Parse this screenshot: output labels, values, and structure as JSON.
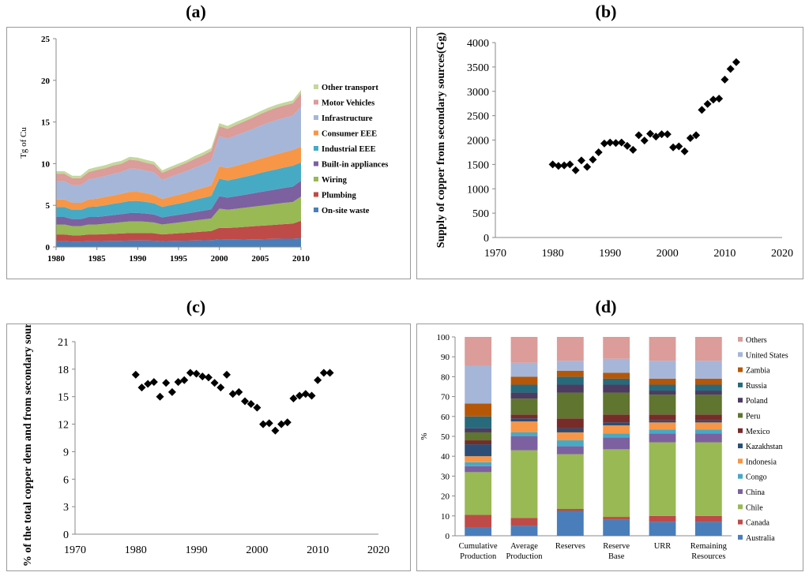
{
  "panels": {
    "a": {
      "label": "(a)"
    },
    "b": {
      "label": "(b)"
    },
    "c": {
      "label": "(c)"
    },
    "d": {
      "label": "(d)"
    }
  },
  "chart_data": [
    {
      "id": "a",
      "type": "area",
      "stacked": true,
      "ylabel": "Tg of Cu",
      "ylim": [
        0,
        25
      ],
      "yticks": [
        0,
        5,
        10,
        15,
        20,
        25
      ],
      "xlim": [
        1980,
        2010
      ],
      "xticks": [
        1980,
        1985,
        1990,
        1995,
        2000,
        2005,
        2010
      ],
      "x": [
        1980,
        1981,
        1982,
        1983,
        1984,
        1985,
        1986,
        1987,
        1988,
        1989,
        1990,
        1991,
        1992,
        1993,
        1994,
        1995,
        1996,
        1997,
        1998,
        1999,
        2000,
        2001,
        2002,
        2003,
        2004,
        2005,
        2006,
        2007,
        2008,
        2009,
        2010
      ],
      "legend_position": "right",
      "series": [
        {
          "name": "On-site waste",
          "color": "#4a7ebb",
          "values": [
            0.7,
            0.7,
            0.65,
            0.65,
            0.7,
            0.7,
            0.72,
            0.73,
            0.75,
            0.77,
            0.78,
            0.78,
            0.76,
            0.7,
            0.72,
            0.74,
            0.76,
            0.78,
            0.8,
            0.82,
            0.9,
            0.88,
            0.88,
            0.9,
            0.92,
            0.94,
            0.96,
            0.98,
            1.0,
            1.0,
            1.05
          ]
        },
        {
          "name": "Plumbing",
          "color": "#be4b48",
          "values": [
            0.8,
            0.8,
            0.75,
            0.75,
            0.8,
            0.8,
            0.82,
            0.85,
            0.87,
            0.9,
            0.9,
            0.9,
            0.88,
            0.8,
            0.85,
            0.9,
            0.95,
            1.0,
            1.05,
            1.1,
            1.4,
            1.4,
            1.45,
            1.5,
            1.55,
            1.6,
            1.65,
            1.7,
            1.75,
            1.8,
            2.1
          ]
        },
        {
          "name": "Wiring",
          "color": "#98b954",
          "values": [
            1.2,
            1.2,
            1.1,
            1.1,
            1.2,
            1.2,
            1.25,
            1.3,
            1.35,
            1.4,
            1.4,
            1.35,
            1.3,
            1.2,
            1.25,
            1.3,
            1.35,
            1.4,
            1.45,
            1.5,
            2.3,
            2.2,
            2.25,
            2.3,
            2.35,
            2.4,
            2.45,
            2.5,
            2.55,
            2.6,
            2.9
          ]
        },
        {
          "name": "Built-in appliances",
          "color": "#7d60a0",
          "values": [
            0.9,
            0.9,
            0.85,
            0.85,
            0.9,
            0.9,
            0.92,
            0.95,
            0.97,
            1.0,
            1.0,
            0.98,
            0.95,
            0.85,
            0.9,
            0.92,
            0.95,
            1.0,
            1.05,
            1.1,
            1.5,
            1.45,
            1.5,
            1.55,
            1.6,
            1.65,
            1.7,
            1.75,
            1.8,
            1.85,
            1.9
          ]
        },
        {
          "name": "Industrial EEE",
          "color": "#46aac5",
          "values": [
            1.2,
            1.2,
            1.1,
            1.1,
            1.2,
            1.25,
            1.3,
            1.35,
            1.4,
            1.45,
            1.45,
            1.4,
            1.35,
            1.25,
            1.3,
            1.35,
            1.4,
            1.5,
            1.55,
            1.6,
            2.1,
            2.05,
            2.1,
            2.15,
            2.2,
            2.3,
            2.35,
            2.4,
            2.45,
            2.5,
            2.2
          ]
        },
        {
          "name": "Consumer EEE",
          "color": "#f79646",
          "values": [
            0.9,
            0.9,
            0.85,
            0.85,
            0.9,
            0.95,
            1.0,
            1.0,
            1.05,
            1.1,
            1.1,
            1.05,
            1.0,
            0.95,
            1.0,
            1.05,
            1.1,
            1.15,
            1.2,
            1.25,
            1.5,
            1.5,
            1.55,
            1.6,
            1.65,
            1.7,
            1.75,
            1.8,
            1.85,
            1.9,
            1.9
          ]
        },
        {
          "name": "Infrastructure",
          "color": "#a5b6d9",
          "values": [
            2.2,
            2.2,
            2.1,
            2.1,
            2.4,
            2.5,
            2.5,
            2.6,
            2.6,
            2.8,
            2.75,
            2.7,
            2.7,
            2.3,
            2.4,
            2.5,
            2.6,
            2.7,
            2.8,
            3.0,
            3.6,
            3.5,
            3.65,
            3.75,
            3.85,
            3.95,
            4.05,
            4.1,
            4.1,
            4.1,
            4.8
          ]
        },
        {
          "name": "Motor Vehicles",
          "color": "#db9c9a",
          "values": [
            0.9,
            0.9,
            0.85,
            0.85,
            0.9,
            0.95,
            0.95,
            1.0,
            1.0,
            1.05,
            1.0,
            0.95,
            0.95,
            0.85,
            0.9,
            0.95,
            1.0,
            1.05,
            1.1,
            1.15,
            1.2,
            1.2,
            1.25,
            1.3,
            1.35,
            1.4,
            1.45,
            1.5,
            1.5,
            1.5,
            1.6
          ]
        },
        {
          "name": "Other transport",
          "color": "#c4d89b",
          "values": [
            0.3,
            0.3,
            0.3,
            0.3,
            0.35,
            0.35,
            0.35,
            0.35,
            0.35,
            0.35,
            0.35,
            0.35,
            0.35,
            0.3,
            0.3,
            0.3,
            0.3,
            0.35,
            0.35,
            0.35,
            0.35,
            0.35,
            0.35,
            0.35,
            0.35,
            0.35,
            0.35,
            0.35,
            0.35,
            0.35,
            0.4
          ]
        }
      ]
    },
    {
      "id": "b",
      "type": "scatter",
      "ylabel": "Supply of copper from secondary sources(Gg)",
      "ylim": [
        0,
        4000
      ],
      "yticks": [
        0,
        500,
        1000,
        1500,
        2000,
        2500,
        3000,
        3500,
        4000
      ],
      "xlim": [
        1970,
        2020
      ],
      "xticks": [
        1970,
        1980,
        1990,
        2000,
        2010,
        2020
      ],
      "grid": false,
      "points": [
        [
          1980,
          1500
        ],
        [
          1981,
          1470
        ],
        [
          1982,
          1480
        ],
        [
          1983,
          1500
        ],
        [
          1984,
          1380
        ],
        [
          1985,
          1580
        ],
        [
          1986,
          1450
        ],
        [
          1987,
          1600
        ],
        [
          1988,
          1750
        ],
        [
          1989,
          1930
        ],
        [
          1990,
          1950
        ],
        [
          1991,
          1940
        ],
        [
          1992,
          1950
        ],
        [
          1993,
          1880
        ],
        [
          1994,
          1800
        ],
        [
          1995,
          2100
        ],
        [
          1996,
          1990
        ],
        [
          1997,
          2130
        ],
        [
          1998,
          2070
        ],
        [
          1999,
          2120
        ],
        [
          2000,
          2120
        ],
        [
          2001,
          1850
        ],
        [
          2002,
          1870
        ],
        [
          2003,
          1770
        ],
        [
          2004,
          2040
        ],
        [
          2005,
          2100
        ],
        [
          2006,
          2620
        ],
        [
          2007,
          2740
        ],
        [
          2008,
          2830
        ],
        [
          2009,
          2850
        ],
        [
          2010,
          3240
        ],
        [
          2011,
          3460
        ],
        [
          2012,
          3600
        ]
      ]
    },
    {
      "id": "c",
      "type": "scatter",
      "ylabel": "% of the total copper dem and from secondary sources",
      "ylim": [
        0,
        21
      ],
      "yticks": [
        0,
        3,
        6,
        9,
        12,
        15,
        18,
        21
      ],
      "xlim": [
        1970,
        2020
      ],
      "xticks": [
        1970,
        1980,
        1990,
        2000,
        2010,
        2020
      ],
      "grid": false,
      "points": [
        [
          1980,
          17.4
        ],
        [
          1981,
          16.0
        ],
        [
          1982,
          16.4
        ],
        [
          1983,
          16.6
        ],
        [
          1984,
          15.0
        ],
        [
          1985,
          16.5
        ],
        [
          1986,
          15.5
        ],
        [
          1987,
          16.6
        ],
        [
          1988,
          16.8
        ],
        [
          1989,
          17.6
        ],
        [
          1990,
          17.5
        ],
        [
          1991,
          17.2
        ],
        [
          1992,
          17.1
        ],
        [
          1993,
          16.5
        ],
        [
          1994,
          16.0
        ],
        [
          1995,
          17.4
        ],
        [
          1996,
          15.3
        ],
        [
          1997,
          15.5
        ],
        [
          1998,
          14.5
        ],
        [
          1999,
          14.2
        ],
        [
          2000,
          13.8
        ],
        [
          2001,
          12.0
        ],
        [
          2002,
          12.1
        ],
        [
          2003,
          11.3
        ],
        [
          2004,
          12.0
        ],
        [
          2005,
          12.2
        ],
        [
          2006,
          14.8
        ],
        [
          2007,
          15.1
        ],
        [
          2008,
          15.3
        ],
        [
          2009,
          15.1
        ],
        [
          2010,
          16.8
        ],
        [
          2011,
          17.6
        ],
        [
          2012,
          17.6
        ]
      ]
    },
    {
      "id": "d",
      "type": "bar",
      "stacked": true,
      "ylabel": "%",
      "ylim": [
        0,
        100
      ],
      "yticks": [
        0,
        10,
        20,
        30,
        40,
        50,
        60,
        70,
        80,
        90,
        100
      ],
      "categories": [
        [
          "Cumulative",
          "Production"
        ],
        [
          "Average",
          "Production"
        ],
        [
          "Reserves"
        ],
        [
          "Reserve",
          "Base"
        ],
        [
          "URR"
        ],
        [
          "Remaining",
          "Resources"
        ]
      ],
      "legend_position": "right",
      "series": [
        {
          "name": "Australia",
          "color": "#4a7ebb",
          "values": [
            4,
            5,
            12.5,
            8,
            7,
            7
          ]
        },
        {
          "name": "Canada",
          "color": "#be4b48",
          "values": [
            6.5,
            4,
            1,
            1.5,
            3,
            3
          ]
        },
        {
          "name": "Chile",
          "color": "#98b954",
          "values": [
            21.5,
            34,
            27.5,
            34,
            37,
            37
          ]
        },
        {
          "name": "China",
          "color": "#7d60a0",
          "values": [
            3,
            7,
            4,
            6,
            4.5,
            4.5
          ]
        },
        {
          "name": "Congo",
          "color": "#46aac5",
          "values": [
            2,
            2,
            3,
            2,
            2,
            2
          ]
        },
        {
          "name": "Indonesia",
          "color": "#f79646",
          "values": [
            3,
            5.5,
            4,
            4,
            3.5,
            3.5
          ]
        },
        {
          "name": "Kazakhstan",
          "color": "#2c4d75",
          "values": [
            6,
            1.5,
            2,
            1.5,
            1,
            1
          ]
        },
        {
          "name": "Mexico",
          "color": "#772c2a",
          "values": [
            2,
            2,
            5,
            4,
            3,
            3
          ]
        },
        {
          "name": "Peru",
          "color": "#5f7530",
          "values": [
            4,
            8,
            13,
            11,
            10,
            10
          ]
        },
        {
          "name": "Poland",
          "color": "#4d3b62",
          "values": [
            2,
            3,
            4,
            4,
            2,
            2
          ]
        },
        {
          "name": "Russia",
          "color": "#276a7c",
          "values": [
            6,
            4,
            4,
            3,
            3,
            3
          ]
        },
        {
          "name": "Zambia",
          "color": "#b65708",
          "values": [
            6.5,
            4,
            3,
            3,
            3,
            3
          ]
        },
        {
          "name": "United States",
          "color": "#a5b6d9",
          "values": [
            19,
            7,
            5,
            7,
            9,
            9
          ]
        },
        {
          "name": "Others",
          "color": "#db9c9a",
          "values": [
            14.5,
            13,
            12,
            11,
            12,
            12
          ]
        }
      ]
    }
  ]
}
